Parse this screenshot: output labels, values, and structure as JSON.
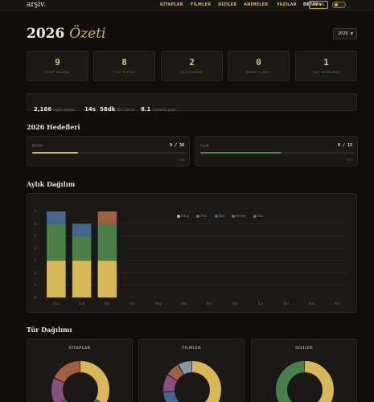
{
  "nav": {
    "brand": "arşiv",
    "brand_dot": ".",
    "links": [
      "KİTAPLAR",
      "FİLMLER",
      "DİZİLER",
      "ANİMELER",
      "YAZILAR"
    ],
    "detay": "DETAY",
    "admin": "ADMİN"
  },
  "page": {
    "title_year": "2026",
    "title_word": "Özeti",
    "year_selected": "2026"
  },
  "stats": [
    {
      "value": "9",
      "label": "KİTAP OKUNDU"
    },
    {
      "value": "8",
      "label": "FİLM İZLENDİ"
    },
    {
      "value": "2",
      "label": "DİZİ İZLENDİ"
    },
    {
      "value": "0",
      "label": "ANİME İZLENDİ"
    },
    {
      "value": "1",
      "label": "YAZI YAYINLANDI"
    }
  ],
  "summary": {
    "pages_value": "2,166",
    "pages_label": "sayfa okundu",
    "time_hours": "14s",
    "time_minutes": "58dk",
    "time_label": "film izlendi",
    "rating_value": "8.1",
    "rating_label": "ortalama puan"
  },
  "sections": {
    "goals": "2026 Hedefleri",
    "monthly": "Aylık Dağılım",
    "genre": "Tür Dağılımı"
  },
  "goals": [
    {
      "label": "KİTAP",
      "current": "9",
      "target": "30",
      "count": "9 / 30",
      "progress": 0.3,
      "pct": "%30",
      "color": "#d9b75c"
    },
    {
      "label": "FİLM",
      "current": "8",
      "target": "15",
      "count": "8 / 15",
      "progress": 0.53,
      "pct": "%53",
      "color": "#4e8a4e"
    }
  ],
  "colors": {
    "kitap": "#d8b755",
    "film": "#4a8049",
    "dizi": "#43658f",
    "anime": "#8a4f7c",
    "yazi": "#a2603f",
    "extra": "#8395a6"
  },
  "chart_data": {
    "type": "bar",
    "stacked": true,
    "categories": [
      "Oca",
      "Şub",
      "Mar",
      "Nis",
      "May",
      "Haz",
      "Tem",
      "Ağu",
      "Eyl",
      "Eki",
      "Kas",
      "Ara"
    ],
    "series": [
      {
        "name": "Kitap",
        "values": [
          3,
          3,
          3,
          0,
          0,
          0,
          0,
          0,
          0,
          0,
          0,
          0
        ]
      },
      {
        "name": "Film",
        "values": [
          3,
          2,
          3,
          0,
          0,
          0,
          0,
          0,
          0,
          0,
          0,
          0
        ]
      },
      {
        "name": "Dizi",
        "values": [
          1,
          1,
          0,
          0,
          0,
          0,
          0,
          0,
          0,
          0,
          0,
          0
        ]
      },
      {
        "name": "Anime",
        "values": [
          0,
          0,
          0,
          0,
          0,
          0,
          0,
          0,
          0,
          0,
          0,
          0
        ]
      },
      {
        "name": "Yazı",
        "values": [
          0,
          0,
          1,
          0,
          0,
          0,
          0,
          0,
          0,
          0,
          0,
          0
        ]
      }
    ],
    "yticks": [
      0,
      1,
      2,
      3,
      4,
      5,
      6,
      7
    ],
    "ylim": [
      0,
      7
    ],
    "grid": true,
    "legend": "top-center"
  },
  "genre_cards": [
    {
      "title": "KİTAPLAR",
      "slices": [
        {
          "share": 0.34,
          "color": "#d8b755"
        },
        {
          "share": 0.12,
          "color": "#4a8049"
        },
        {
          "share": 0.08,
          "color": "#43658f"
        },
        {
          "share": 0.12,
          "color": "#43658f"
        },
        {
          "share": 0.16,
          "color": "#8a4f7c"
        },
        {
          "share": 0.18,
          "color": "#a2603f"
        }
      ]
    },
    {
      "title": "FİLMLER",
      "slices": [
        {
          "share": 0.48,
          "color": "#d8b755"
        },
        {
          "share": 0.14,
          "color": "#4a8049"
        },
        {
          "share": 0.12,
          "color": "#43658f"
        },
        {
          "share": 0.1,
          "color": "#8a4f7c"
        },
        {
          "share": 0.08,
          "color": "#a2603f"
        },
        {
          "share": 0.08,
          "color": "#8395a6"
        }
      ]
    },
    {
      "title": "DİZİLER",
      "slices": [
        {
          "share": 0.5,
          "color": "#d8b755"
        },
        {
          "share": 0.5,
          "color": "#4a8049"
        }
      ]
    }
  ]
}
